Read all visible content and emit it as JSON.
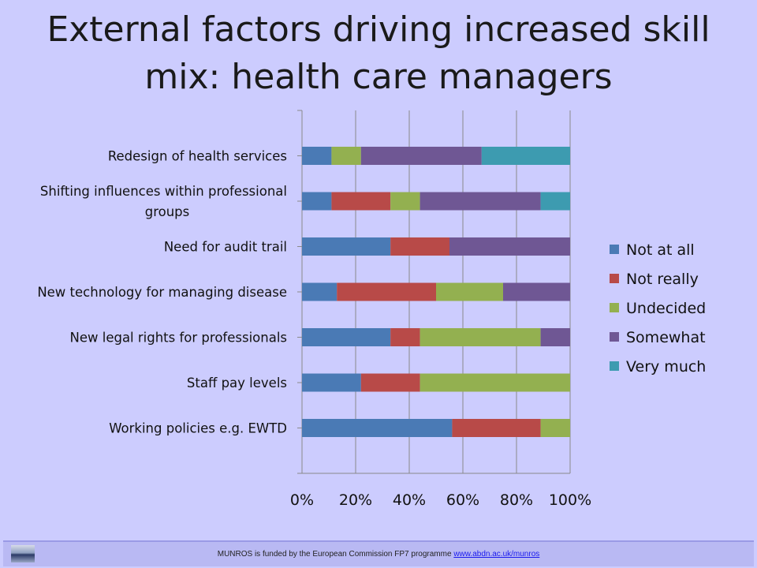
{
  "title_lines": [
    "External factors driving increased skill",
    "mix: health care managers"
  ],
  "footer": {
    "text": "MUNROS is funded by the European Commission FP7 programme",
    "link": "www.abdn.ac.uk/munros"
  },
  "chart_data": {
    "type": "bar",
    "orientation": "horizontal",
    "stacked": "percent",
    "categories": [
      "Redesign of health services",
      [
        "Shifting influences within professional",
        "groups"
      ],
      "Need for audit trail",
      "New technology for managing disease",
      "New legal rights for professionals",
      "Staff pay levels",
      "Working policies e.g. EWTD"
    ],
    "series": [
      {
        "name": "Not at all",
        "color": "#4a7ab5",
        "values": [
          11,
          11,
          33,
          13,
          33,
          22,
          56
        ]
      },
      {
        "name": "Not really",
        "color": "#b84a48",
        "values": [
          0,
          22,
          22,
          37,
          11,
          22,
          33
        ]
      },
      {
        "name": "Undecided",
        "color": "#93b050",
        "values": [
          11,
          11,
          0,
          25,
          45,
          56,
          11
        ]
      },
      {
        "name": "Somewhat",
        "color": "#6f5794",
        "values": [
          45,
          45,
          45,
          25,
          11,
          0,
          0
        ]
      },
      {
        "name": "Very much",
        "color": "#3d9bb0",
        "values": [
          33,
          11,
          0,
          0,
          0,
          0,
          0
        ]
      }
    ],
    "xlim": [
      0,
      100
    ],
    "xticks": [
      "0%",
      "20%",
      "40%",
      "60%",
      "80%",
      "100%"
    ],
    "grid": true,
    "legend": "right"
  }
}
